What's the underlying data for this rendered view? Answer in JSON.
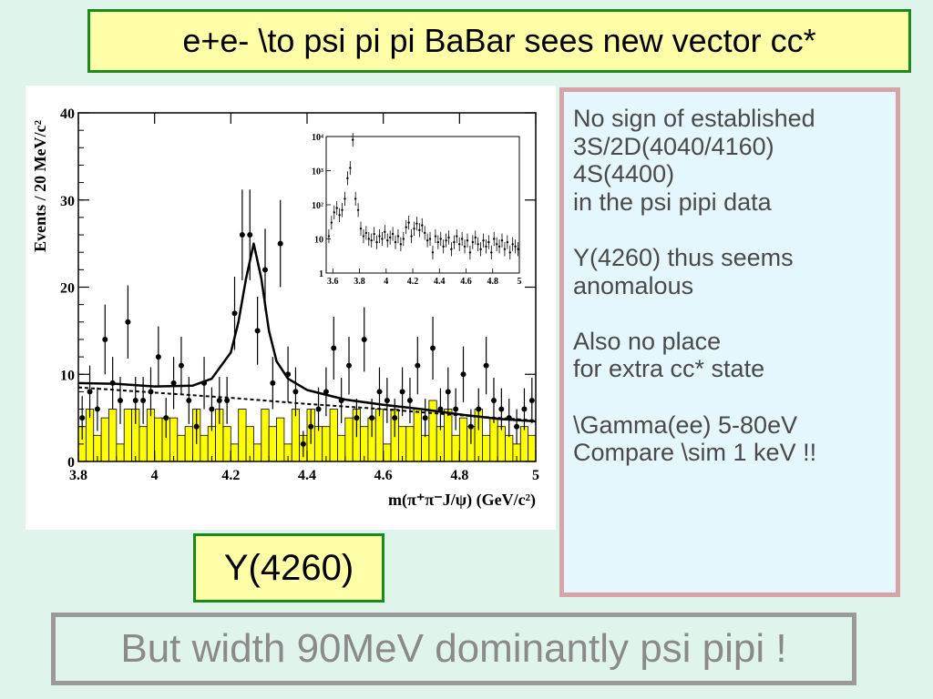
{
  "title": "e+e- \\to psi pi pi BaBar sees new vector cc*",
  "plot_label": "Y(4260)",
  "bottom_text": "But width 90MeV dominantly psi pipi !",
  "notes": [
    "No sign of established",
    "3S/2D(4040/4160)",
    "4S(4400)",
    "in the psi pipi data",
    "",
    "Y(4260) thus seems",
    "anomalous",
    "",
    "Also no place",
    "for extra cc* state",
    "",
    "\\Gamma(ee) 5-80eV",
    "Compare \\sim 1 keV !!"
  ],
  "colors": {
    "background": "#dff5ec",
    "title_fill": "#ffffa8",
    "title_border": "#1a8a1a",
    "note_fill": "#e4f7fc",
    "note_border": "#d7a3a8",
    "histogram_fill": "#ffff00"
  },
  "chart_data": [
    {
      "type": "scatter",
      "title": "",
      "xlabel": "m(π⁺π⁻J/ψ) (GeV/c²)",
      "ylabel": "Events / 20 MeV/c²",
      "xlim": [
        3.8,
        5.0
      ],
      "ylim": [
        0,
        40
      ],
      "xticks": [
        "3.8",
        "4",
        "4.2",
        "4.4",
        "4.6",
        "4.8",
        "5"
      ],
      "yticks": [
        "0",
        "10",
        "20",
        "30",
        "40"
      ],
      "series": [
        {
          "kind": "points_with_errors",
          "x": [
            3.81,
            3.83,
            3.85,
            3.87,
            3.89,
            3.91,
            3.93,
            3.95,
            3.97,
            3.99,
            4.01,
            4.03,
            4.05,
            4.07,
            4.09,
            4.11,
            4.13,
            4.15,
            4.17,
            4.19,
            4.21,
            4.23,
            4.25,
            4.27,
            4.29,
            4.31,
            4.33,
            4.35,
            4.37,
            4.39,
            4.41,
            4.43,
            4.45,
            4.47,
            4.49,
            4.51,
            4.53,
            4.55,
            4.57,
            4.59,
            4.61,
            4.63,
            4.65,
            4.67,
            4.69,
            4.71,
            4.73,
            4.75,
            4.77,
            4.79,
            4.81,
            4.83,
            4.85,
            4.87,
            4.89,
            4.91,
            4.93,
            4.95,
            4.97,
            4.99
          ],
          "y": [
            5,
            8,
            6,
            14,
            9,
            7,
            16,
            7,
            7,
            8,
            12,
            5,
            9,
            11,
            7,
            4,
            9,
            6,
            7,
            7,
            17,
            26,
            26,
            15,
            22,
            9,
            25,
            10,
            8,
            2,
            4,
            6,
            8,
            13,
            7,
            11,
            5,
            14,
            5,
            8,
            7,
            5,
            8,
            7,
            11,
            5,
            13,
            6,
            8,
            6,
            10,
            4,
            6,
            11,
            7,
            6,
            5,
            4,
            6,
            7
          ],
          "yerr": [
            2.5,
            3,
            2.5,
            4,
            3,
            2.7,
            4.2,
            2.7,
            2.7,
            2.8,
            3.5,
            2.3,
            3,
            3.3,
            2.7,
            2,
            3,
            2.5,
            2.7,
            2.7,
            4.2,
            5.2,
            5.2,
            3.9,
            4.7,
            3,
            5,
            3.2,
            2.8,
            1.5,
            2,
            2.5,
            2.8,
            3.6,
            2.6,
            3.3,
            2.2,
            3.7,
            2.2,
            2.8,
            2.6,
            2.2,
            2.8,
            2.6,
            3.3,
            2.2,
            3.6,
            2.4,
            2.8,
            2.4,
            3.2,
            2,
            2.4,
            3.3,
            2.6,
            2.4,
            2.2,
            2,
            2.4,
            2.6
          ]
        },
        {
          "kind": "histogram",
          "x": [
            3.81,
            3.83,
            3.85,
            3.87,
            3.89,
            3.91,
            3.93,
            3.95,
            3.97,
            3.99,
            4.01,
            4.03,
            4.05,
            4.07,
            4.09,
            4.11,
            4.13,
            4.15,
            4.17,
            4.19,
            4.21,
            4.23,
            4.25,
            4.27,
            4.29,
            4.31,
            4.33,
            4.35,
            4.37,
            4.39,
            4.41,
            4.43,
            4.45,
            4.47,
            4.49,
            4.51,
            4.53,
            4.55,
            4.57,
            4.59,
            4.61,
            4.63,
            4.65,
            4.67,
            4.69,
            4.71,
            4.73,
            4.75,
            4.77,
            4.79,
            4.81,
            4.83,
            4.85,
            4.87,
            4.89,
            4.91,
            4.93,
            4.95,
            4.97,
            4.99
          ],
          "y": [
            4,
            6,
            3,
            5,
            6,
            2,
            6,
            6,
            4,
            6,
            5,
            5,
            5,
            3,
            4,
            6,
            3,
            4,
            6,
            4,
            2,
            6,
            4,
            2,
            6,
            4,
            5,
            2,
            6,
            3,
            6,
            4,
            4,
            6,
            3,
            5,
            6,
            4,
            5,
            6,
            2,
            6,
            4,
            4,
            6,
            3,
            7,
            4,
            6,
            3,
            5,
            4,
            6,
            3,
            5,
            4,
            3,
            2,
            4,
            3
          ]
        },
        {
          "kind": "fit_curve",
          "x": [
            3.8,
            3.9,
            4.0,
            4.1,
            4.15,
            4.2,
            4.22,
            4.24,
            4.26,
            4.28,
            4.3,
            4.32,
            4.35,
            4.4,
            4.5,
            4.6,
            4.7,
            4.8,
            4.9,
            5.0
          ],
          "y": [
            9,
            8.9,
            8.6,
            8.7,
            9.5,
            12.5,
            16,
            21,
            25,
            21,
            15,
            11.5,
            9.5,
            8.2,
            7.1,
            6.5,
            6.0,
            5.4,
            4.9,
            4.6
          ]
        },
        {
          "kind": "background_curve",
          "x": [
            3.8,
            4.0,
            4.2,
            4.4,
            4.6,
            4.8,
            5.0
          ],
          "y": [
            8.5,
            7.9,
            7.3,
            6.6,
            6.0,
            5.3,
            4.7
          ]
        }
      ]
    },
    {
      "type": "scatter",
      "title": "",
      "xlabel": "",
      "ylabel": "",
      "xlim": [
        3.55,
        5.0
      ],
      "ylim_log10": [
        0,
        4
      ],
      "log_y": true,
      "xticks": [
        "3.6",
        "3.8",
        "4",
        "4.2",
        "4.4",
        "4.6",
        "4.8",
        "5"
      ],
      "yticks": [
        "1",
        "10",
        "10²",
        "10³",
        "10⁴"
      ],
      "series": [
        {
          "kind": "points",
          "x": [
            3.57,
            3.59,
            3.61,
            3.63,
            3.65,
            3.67,
            3.69,
            3.71,
            3.73,
            3.75,
            3.77,
            3.79,
            3.81,
            3.83,
            3.85,
            3.87,
            3.89,
            3.91,
            3.93,
            3.95,
            3.97,
            3.99,
            4.01,
            4.03,
            4.05,
            4.07,
            4.09,
            4.11,
            4.13,
            4.15,
            4.17,
            4.19,
            4.21,
            4.23,
            4.25,
            4.27,
            4.29,
            4.31,
            4.33,
            4.35,
            4.37,
            4.39,
            4.41,
            4.43,
            4.45,
            4.47,
            4.49,
            4.51,
            4.53,
            4.55,
            4.57,
            4.59,
            4.61,
            4.63,
            4.65,
            4.67,
            4.69,
            4.71,
            4.73,
            4.75,
            4.77,
            4.79,
            4.81,
            4.83,
            4.85,
            4.87,
            4.89,
            4.91,
            4.93,
            4.95,
            4.97,
            4.99
          ],
          "y": [
            12,
            30,
            60,
            80,
            50,
            70,
            150,
            600,
            1200,
            8000,
            150,
            70,
            20,
            12,
            15,
            10,
            9,
            14,
            8,
            12,
            10,
            16,
            9,
            11,
            14,
            8,
            12,
            7,
            10,
            22,
            30,
            12,
            20,
            28,
            18,
            25,
            15,
            9,
            10,
            4,
            12,
            8,
            10,
            6,
            9,
            11,
            5,
            8,
            12,
            7,
            10,
            6,
            9,
            4,
            8,
            11,
            7,
            5,
            9,
            6,
            8,
            4,
            10,
            7,
            6,
            9,
            5,
            8,
            4,
            7,
            6,
            5
          ]
        }
      ]
    }
  ]
}
